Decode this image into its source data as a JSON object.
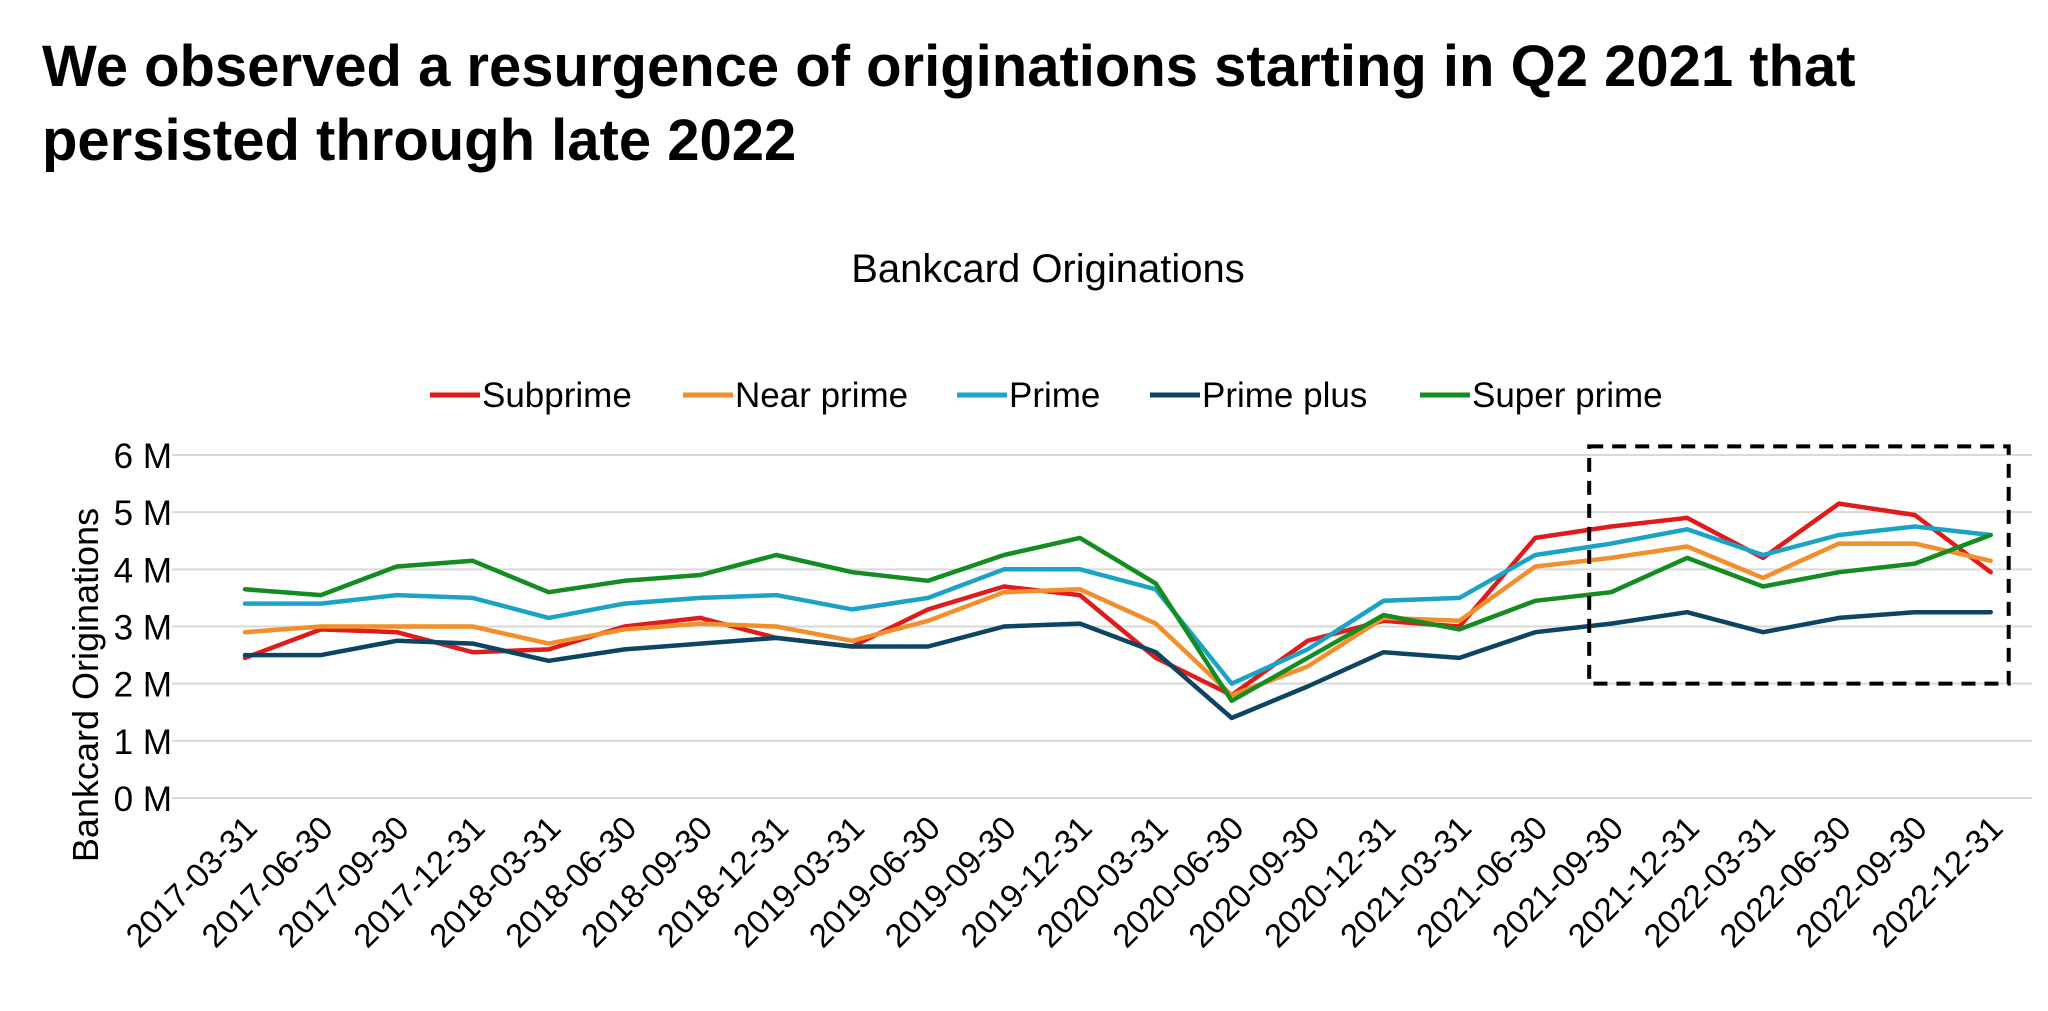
{
  "slide": {
    "title": "We observed a resurgence of originations starting in Q2 2021 that persisted through late 2022"
  },
  "chart_data": {
    "type": "line",
    "title": "Bankcard Originations",
    "ylabel": "Bankcard Originations",
    "xlabel": "",
    "ylim": [
      0,
      6000000
    ],
    "yticks": [
      {
        "value": 0,
        "label": "0 M"
      },
      {
        "value": 1000000,
        "label": "1 M"
      },
      {
        "value": 2000000,
        "label": "2 M"
      },
      {
        "value": 3000000,
        "label": "3 M"
      },
      {
        "value": 4000000,
        "label": "4 M"
      },
      {
        "value": 5000000,
        "label": "5 M"
      },
      {
        "value": 6000000,
        "label": "6 M"
      }
    ],
    "grid": true,
    "legend": "top",
    "categories": [
      "2017-03-31",
      "2017-06-30",
      "2017-09-30",
      "2017-12-31",
      "2018-03-31",
      "2018-06-30",
      "2018-09-30",
      "2018-12-31",
      "2019-03-31",
      "2019-06-30",
      "2019-09-30",
      "2019-12-31",
      "2020-03-31",
      "2020-06-30",
      "2020-09-30",
      "2020-12-31",
      "2021-03-31",
      "2021-06-30",
      "2021-09-30",
      "2021-12-31",
      "2022-03-31",
      "2022-06-30",
      "2022-09-30",
      "2022-12-31"
    ],
    "series": [
      {
        "name": "Subprime",
        "color": "#e01b1b",
        "values": [
          2450000,
          2950000,
          2900000,
          2550000,
          2600000,
          3000000,
          3150000,
          2800000,
          2650000,
          3300000,
          3700000,
          3550000,
          2450000,
          1800000,
          2750000,
          3100000,
          3000000,
          4550000,
          4750000,
          4900000,
          4200000,
          5150000,
          4950000,
          3950000
        ]
      },
      {
        "name": "Near prime",
        "color": "#f28e2b",
        "values": [
          2900000,
          3000000,
          3000000,
          3000000,
          2700000,
          2950000,
          3050000,
          3000000,
          2750000,
          3100000,
          3600000,
          3650000,
          3050000,
          1800000,
          2300000,
          3150000,
          3100000,
          4050000,
          4200000,
          4400000,
          3850000,
          4450000,
          4450000,
          4150000
        ]
      },
      {
        "name": "Prime",
        "color": "#1ba3c6",
        "values": [
          3400000,
          3400000,
          3550000,
          3500000,
          3150000,
          3400000,
          3500000,
          3550000,
          3300000,
          3500000,
          4000000,
          4000000,
          3650000,
          2000000,
          2600000,
          3450000,
          3500000,
          4250000,
          4450000,
          4700000,
          4250000,
          4600000,
          4750000,
          4600000
        ]
      },
      {
        "name": "Prime plus",
        "color": "#0b4563",
        "values": [
          2500000,
          2500000,
          2750000,
          2700000,
          2400000,
          2600000,
          2700000,
          2800000,
          2650000,
          2650000,
          3000000,
          3050000,
          2550000,
          1400000,
          1950000,
          2550000,
          2450000,
          2900000,
          3050000,
          3250000,
          2900000,
          3150000,
          3250000,
          3250000
        ]
      },
      {
        "name": "Super prime",
        "color": "#148c22",
        "values": [
          3650000,
          3550000,
          4050000,
          4150000,
          3600000,
          3800000,
          3900000,
          4250000,
          3950000,
          3800000,
          4250000,
          4550000,
          3750000,
          1700000,
          2450000,
          3200000,
          2950000,
          3450000,
          3600000,
          4200000,
          3700000,
          3950000,
          4100000,
          4600000
        ]
      }
    ],
    "highlight_box": {
      "from_category": "2021-09-30",
      "to_category": "2022-12-31",
      "y_from": 2000000,
      "y_to": 6150000,
      "style": "dashed"
    }
  }
}
